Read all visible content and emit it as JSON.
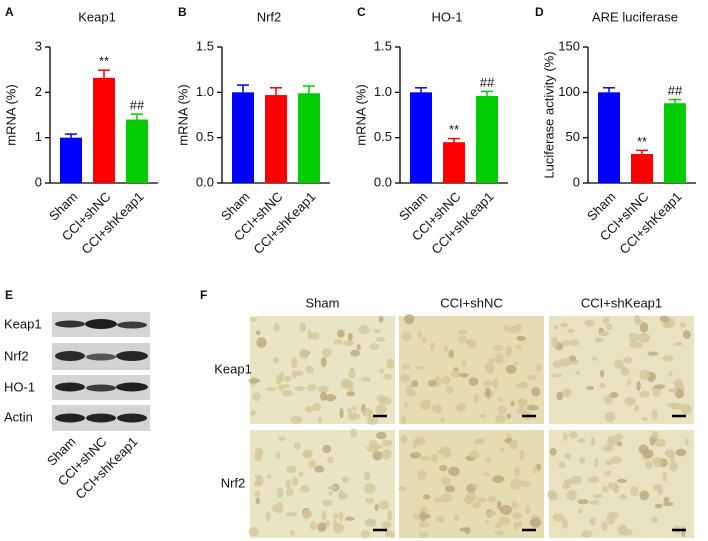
{
  "chart_data": [
    {
      "type": "bar",
      "panel": "A",
      "title": "Keap1",
      "y_label": "mRNA (%)",
      "categories": [
        "Sham",
        "CCI+shNC",
        "CCI+shKeap1"
      ],
      "values": [
        1.0,
        2.32,
        1.4
      ],
      "errors": [
        0.08,
        0.17,
        0.12
      ],
      "significance": [
        null,
        "**",
        "##"
      ],
      "colors": [
        "#0000ff",
        "#ff0000",
        "#00cc00"
      ],
      "ylim": [
        0,
        3
      ],
      "yticks": [
        0,
        1,
        2,
        3
      ]
    },
    {
      "type": "bar",
      "panel": "B",
      "title": "Nrf2",
      "y_label": "mRNA (%)",
      "categories": [
        "Sham",
        "CCI+shNC",
        "CCI+shKeap1"
      ],
      "values": [
        1.0,
        0.97,
        0.99
      ],
      "errors": [
        0.08,
        0.08,
        0.08
      ],
      "significance": [
        null,
        null,
        null
      ],
      "colors": [
        "#0000ff",
        "#ff0000",
        "#00cc00"
      ],
      "ylim": [
        0,
        1.5
      ],
      "yticks": [
        {
          "value": 0,
          "label": "0.0"
        },
        {
          "value": 0.5,
          "label": "0.5"
        },
        {
          "value": 1,
          "label": "1.0"
        },
        {
          "value": 1.5,
          "label": "1.5"
        }
      ]
    },
    {
      "type": "bar",
      "panel": "C",
      "title": "HO-1",
      "y_label": "mRNA (%)",
      "categories": [
        "Sham",
        "CCI+shNC",
        "CCI+shKeap1"
      ],
      "values": [
        1.0,
        0.45,
        0.96
      ],
      "errors": [
        0.05,
        0.04,
        0.05
      ],
      "significance": [
        null,
        "**",
        "##"
      ],
      "colors": [
        "#0000ff",
        "#ff0000",
        "#00cc00"
      ],
      "ylim": [
        0,
        1.5
      ],
      "yticks": [
        {
          "value": 0,
          "label": "0.0"
        },
        {
          "value": 0.5,
          "label": "0.5"
        },
        {
          "value": 1,
          "label": "1.0"
        },
        {
          "value": 1.5,
          "label": "1.5"
        }
      ]
    },
    {
      "type": "bar",
      "panel": "D",
      "title": "ARE luciferase",
      "y_label": "Luciferase activity (%)",
      "categories": [
        "Sham",
        "CCI+shNC",
        "CCI+shKeap1"
      ],
      "values": [
        100,
        32,
        88
      ],
      "errors": [
        5,
        4,
        4
      ],
      "significance": [
        null,
        "**",
        "##"
      ],
      "colors": [
        "#0000ff",
        "#ff0000",
        "#00cc00"
      ],
      "ylim": [
        0,
        150
      ],
      "yticks": [
        0,
        50,
        100,
        150
      ]
    }
  ],
  "blot": {
    "panel": "E",
    "proteins": [
      "Keap1",
      "Nrf2",
      "HO-1",
      "Actin"
    ],
    "lanes": [
      "Sham",
      "CCI+shNC",
      "CCI+shKeap1"
    ]
  },
  "histology": {
    "panel": "F",
    "columns": [
      "Sham",
      "CCI+shNC",
      "CCI+shKeap1"
    ],
    "rows": [
      "Keap1",
      "Nrf2"
    ]
  }
}
